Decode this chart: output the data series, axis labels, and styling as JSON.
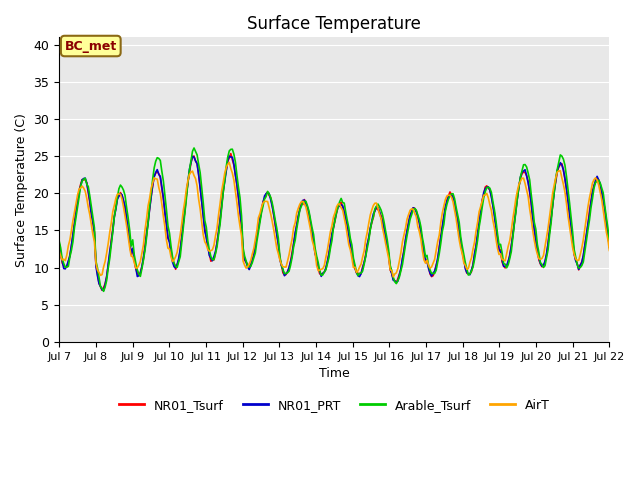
{
  "title": "Surface Temperature",
  "ylabel": "Surface Temperature (C)",
  "xlabel": "Time",
  "bg_color": "#e8e8e8",
  "annotation_text": "BC_met",
  "annotation_color": "#8B0000",
  "annotation_bg": "#FFFF99",
  "annotation_border": "#8B6914",
  "ylim": [
    0,
    41
  ],
  "yticks": [
    0,
    5,
    10,
    15,
    20,
    25,
    30,
    35,
    40
  ],
  "series": {
    "NR01_Tsurf": {
      "color": "#FF0000",
      "lw": 1.2
    },
    "NR01_PRT": {
      "color": "#0000CC",
      "lw": 1.2
    },
    "Arable_Tsurf": {
      "color": "#00CC00",
      "lw": 1.2
    },
    "AirT": {
      "color": "#FFA500",
      "lw": 1.2
    }
  },
  "xtick_labels": [
    "Jul 7",
    "Jul 8",
    "Jul 9",
    "Jul 10",
    "Jul 11",
    "Jul 12",
    "Jul 13",
    "Jul 14",
    "Jul 15",
    "Jul 16",
    "Jul 17",
    "Jul 18",
    "Jul 19",
    "Jul 20",
    "Jul 21",
    "Jul 22"
  ],
  "n_days": 15,
  "n_points": 360
}
